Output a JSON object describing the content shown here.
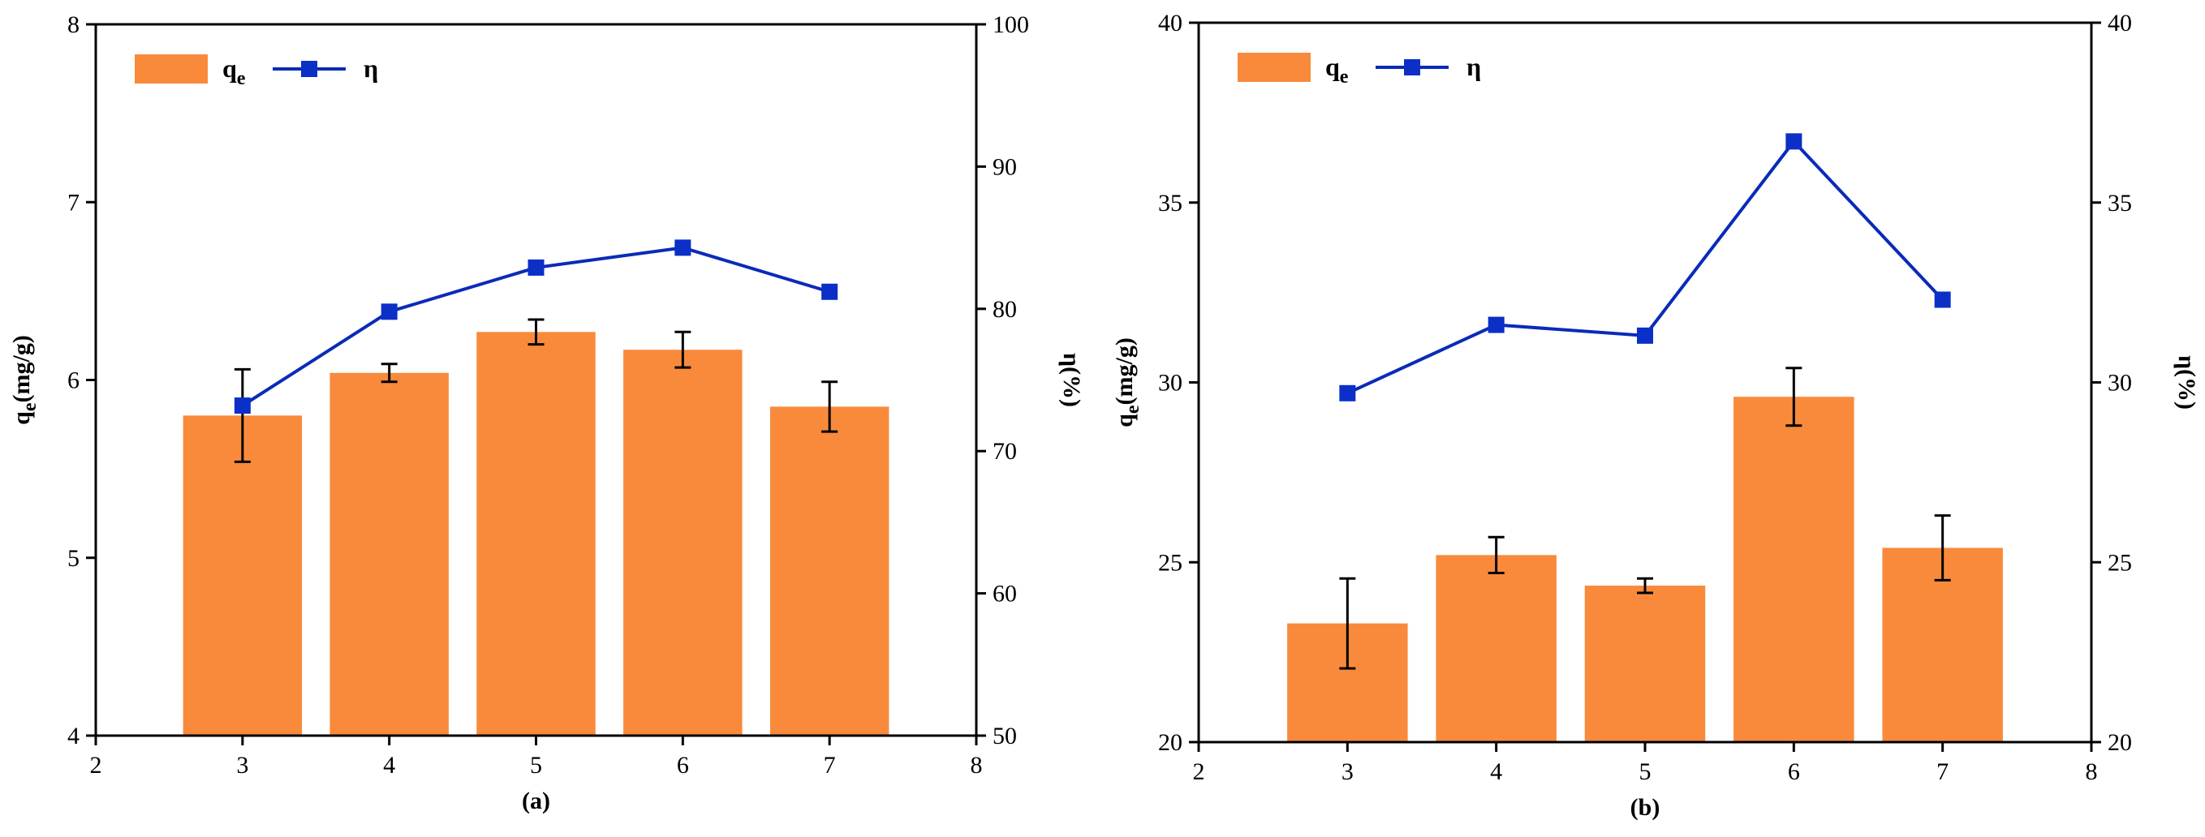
{
  "chart_data": [
    {
      "type": "bar",
      "caption": "(a)",
      "x": [
        3,
        4,
        5,
        6,
        7
      ],
      "xlim": [
        2,
        8
      ],
      "xticks": [
        "2",
        "3",
        "4",
        "5",
        "6",
        "7",
        "8"
      ],
      "ylim": [
        4,
        8
      ],
      "yticks": [
        "4",
        "5",
        "6",
        "7",
        "8"
      ],
      "y2lim": [
        50,
        100
      ],
      "y2ticks": [
        "50",
        "60",
        "70",
        "80",
        "90",
        "100"
      ],
      "ylabel": "q",
      "ylabel_sub": "e",
      "ylabel_tail": "(mg/g)",
      "y2label": "η(%)",
      "legend": {
        "bar_main": "q",
        "bar_sub": "e",
        "line": "η"
      },
      "series": [
        {
          "kind": "bar",
          "values": [
            5.8,
            6.04,
            6.27,
            6.17,
            5.85
          ],
          "errors": [
            0.26,
            0.05,
            0.07,
            0.1,
            0.14
          ]
        },
        {
          "kind": "line",
          "values": [
            73.2,
            79.8,
            82.9,
            84.3,
            81.2
          ]
        }
      ],
      "colors": {
        "bar": "#f98a3c",
        "line": "#0a2bb8",
        "marker": "#0b2fc7"
      }
    },
    {
      "type": "bar",
      "caption": "(b)",
      "x": [
        3,
        4,
        5,
        6,
        7
      ],
      "xlim": [
        2,
        8
      ],
      "xticks": [
        "2",
        "3",
        "4",
        "5",
        "6",
        "7",
        "8"
      ],
      "ylim": [
        20,
        40
      ],
      "yticks": [
        "20",
        "25",
        "30",
        "35",
        "40"
      ],
      "y2lim": [
        20,
        40
      ],
      "y2ticks": [
        "20",
        "25",
        "30",
        "35",
        "40"
      ],
      "ylabel": "q",
      "ylabel_sub": "e",
      "ylabel_tail": "(mg/g)",
      "y2label": "η(%)",
      "legend": {
        "bar_main": "q",
        "bar_sub": "e",
        "line": "η"
      },
      "series": [
        {
          "kind": "bar",
          "values": [
            23.3,
            25.2,
            24.35,
            29.6,
            25.4
          ],
          "errors": [
            1.25,
            0.5,
            0.2,
            0.8,
            0.9
          ]
        },
        {
          "kind": "line",
          "values": [
            29.7,
            31.6,
            31.3,
            36.7,
            32.3
          ]
        }
      ],
      "colors": {
        "bar": "#f98a3c",
        "line": "#0a2bb8",
        "marker": "#0b2fc7"
      }
    }
  ]
}
